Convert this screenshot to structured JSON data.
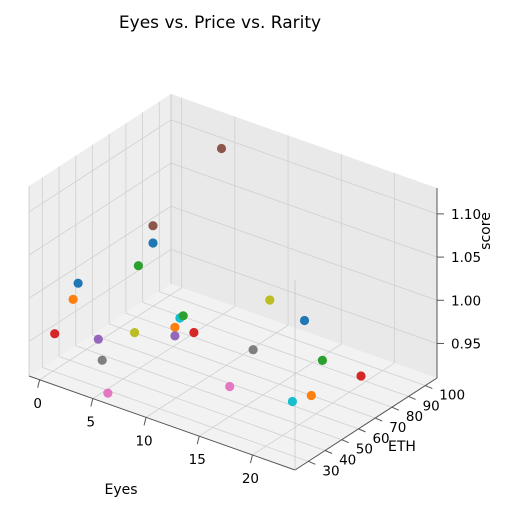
{
  "chart_data": {
    "type": "scatter3d",
    "title": "Eyes vs. Price vs. Rarity",
    "xlabel": "Eyes",
    "ylabel": "ETH",
    "zlabel": "score",
    "xlim": [
      -1,
      24
    ],
    "ylim": [
      22,
      107
    ],
    "zlim": [
      0.91,
      1.13
    ],
    "x_ticks": [
      "0",
      "5",
      "10",
      "15",
      "20"
    ],
    "y_ticks": [
      "30",
      "40",
      "50",
      "60",
      "70",
      "80",
      "90",
      "100"
    ],
    "z_ticks": [
      "0.95",
      "1.00",
      "1.05",
      "1.10"
    ],
    "grid": true,
    "points": [
      {
        "x": 5,
        "y": 99,
        "z": 1.103,
        "color": "#8c564b"
      },
      {
        "x": 5,
        "y": 58,
        "z": 1.065,
        "color": "#8c564b"
      },
      {
        "x": 5,
        "y": 58,
        "z": 1.045,
        "color": "#1f77b4"
      },
      {
        "x": 0,
        "y": 45,
        "z": 0.993,
        "color": "#1f77b4"
      },
      {
        "x": 3,
        "y": 62,
        "z": 1.005,
        "color": "#2ca02c"
      },
      {
        "x": 0,
        "y": 42,
        "z": 0.978,
        "color": "#ff7f0e"
      },
      {
        "x": 0,
        "y": 31,
        "z": 0.952,
        "color": "#d62728"
      },
      {
        "x": 8,
        "y": 55,
        "z": 0.975,
        "color": "#17becf"
      },
      {
        "x": 8,
        "y": 57,
        "z": 0.975,
        "color": "#2ca02c"
      },
      {
        "x": 8,
        "y": 52,
        "z": 0.968,
        "color": "#ff7f0e"
      },
      {
        "x": 9,
        "y": 57,
        "z": 0.96,
        "color": "#d62728"
      },
      {
        "x": 8,
        "y": 52,
        "z": 0.958,
        "color": "#9467bd"
      },
      {
        "x": 5,
        "y": 47,
        "z": 0.955,
        "color": "#bcbd22"
      },
      {
        "x": 3,
        "y": 38,
        "z": 0.95,
        "color": "#9467bd"
      },
      {
        "x": 4,
        "y": 34,
        "z": 0.935,
        "color": "#7f7f7f"
      },
      {
        "x": 13,
        "y": 77,
        "z": 0.99,
        "color": "#bcbd22"
      },
      {
        "x": 15,
        "y": 85,
        "z": 0.965,
        "color": "#1f77b4"
      },
      {
        "x": 13,
        "y": 67,
        "z": 0.945,
        "color": "#7f7f7f"
      },
      {
        "x": 13,
        "y": 53,
        "z": 0.92,
        "color": "#e377c2"
      },
      {
        "x": 17,
        "y": 83,
        "z": 0.93,
        "color": "#2ca02c"
      },
      {
        "x": 5,
        "y": 31,
        "z": 0.905,
        "color": "#e377c2"
      },
      {
        "x": 20,
        "y": 87,
        "z": 0.92,
        "color": "#d62728"
      },
      {
        "x": 18,
        "y": 70,
        "z": 0.91,
        "color": "#ff7f0e"
      },
      {
        "x": 17,
        "y": 65,
        "z": 0.905,
        "color": "#17becf"
      }
    ]
  }
}
